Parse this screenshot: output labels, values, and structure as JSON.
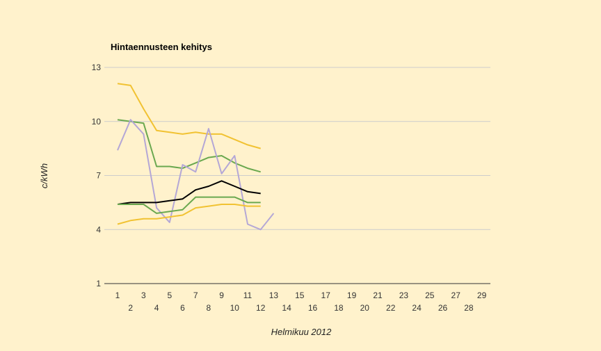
{
  "chart_data": {
    "type": "line",
    "title": "Hintaennusteen kehitys",
    "xlabel": "Helmikuu 2012",
    "ylabel": "c/kWh",
    "ylim": [
      1,
      13
    ],
    "yticks": [
      1,
      4,
      7,
      10,
      13
    ],
    "xticks": [
      1,
      2,
      3,
      4,
      5,
      6,
      7,
      8,
      9,
      10,
      11,
      12,
      13,
      14,
      15,
      16,
      17,
      18,
      19,
      20,
      21,
      22,
      23,
      24,
      25,
      26,
      27,
      28,
      29
    ],
    "xlim": [
      1,
      29.5
    ],
    "grid": true,
    "legend": "none",
    "series": [
      {
        "color": "#f1c232",
        "x": [
          1,
          2,
          3,
          4,
          5,
          6,
          7,
          8,
          9,
          10,
          11,
          12
        ],
        "values": [
          12.1,
          12.0,
          10.7,
          9.5,
          9.4,
          9.3,
          9.4,
          9.3,
          9.3,
          9.0,
          8.7,
          8.5
        ]
      },
      {
        "color": "#6aa84f",
        "x": [
          1,
          2,
          3,
          4,
          5,
          6,
          7,
          8,
          9,
          10,
          11,
          12
        ],
        "values": [
          10.1,
          10.0,
          9.9,
          7.5,
          7.5,
          7.4,
          7.7,
          8.0,
          8.1,
          7.7,
          7.4,
          7.2
        ]
      },
      {
        "color": "#b4a7d6",
        "x": [
          1,
          2,
          3,
          4,
          5,
          6,
          7,
          8,
          9,
          10,
          11,
          12,
          13
        ],
        "values": [
          8.4,
          10.1,
          9.3,
          5.2,
          4.4,
          7.6,
          7.2,
          9.6,
          7.1,
          8.1,
          4.3,
          4.0,
          4.9
        ]
      },
      {
        "color": "#000000",
        "x": [
          1,
          2,
          3,
          4,
          5,
          6,
          7,
          8,
          9,
          10,
          11,
          12
        ],
        "values": [
          5.4,
          5.5,
          5.5,
          5.5,
          5.6,
          5.7,
          6.2,
          6.4,
          6.7,
          6.4,
          6.1,
          6.0
        ]
      },
      {
        "color": "#6aa84f",
        "x": [
          1,
          2,
          3,
          4,
          5,
          6,
          7,
          8,
          9,
          10,
          11,
          12
        ],
        "values": [
          5.4,
          5.4,
          5.4,
          4.9,
          5.0,
          5.1,
          5.8,
          5.8,
          5.8,
          5.8,
          5.5,
          5.5
        ]
      },
      {
        "color": "#f1c232",
        "x": [
          1,
          2,
          3,
          4,
          5,
          6,
          7,
          8,
          9,
          10,
          11,
          12
        ],
        "values": [
          4.3,
          4.5,
          4.6,
          4.6,
          4.7,
          4.8,
          5.2,
          5.3,
          5.4,
          5.4,
          5.3,
          5.3
        ]
      }
    ]
  }
}
